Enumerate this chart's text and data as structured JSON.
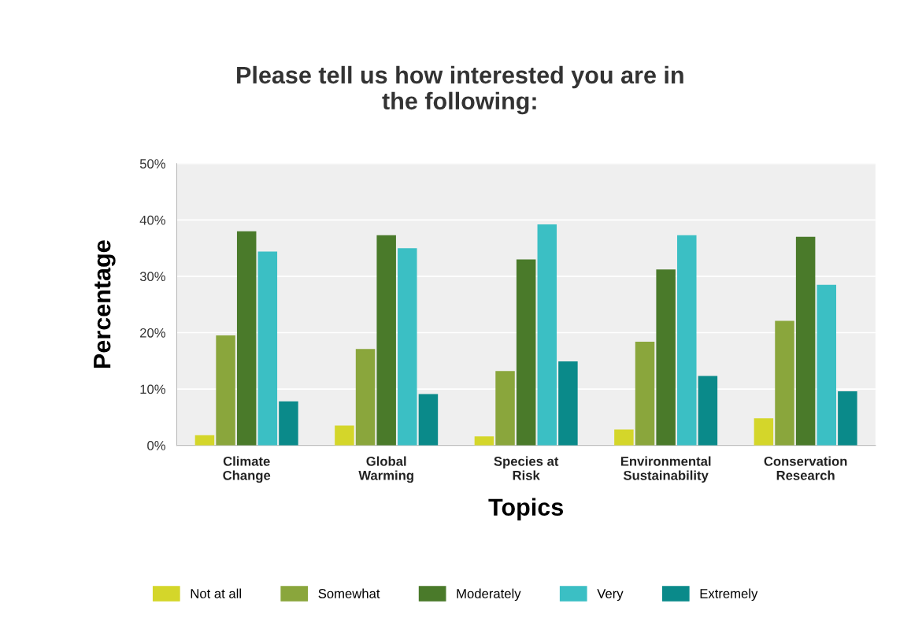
{
  "chart_data": {
    "type": "bar",
    "title": "Please tell us how interested you are in\nthe following:",
    "xlabel": "Topics",
    "ylabel": "Percentage",
    "categories": [
      "Climate\nChange",
      "Global\nWarming",
      "Species at\nRisk",
      "Environmental\nSustainability",
      "Conservation\nResearch"
    ],
    "series": [
      {
        "name": "Not at all",
        "color": "#d4d62a",
        "values": [
          1.8,
          3.5,
          1.6,
          2.8,
          4.8
        ]
      },
      {
        "name": "Somewhat",
        "color": "#8aa63c",
        "values": [
          19.5,
          17.1,
          13.2,
          18.4,
          22.1
        ]
      },
      {
        "name": "Moderately",
        "color": "#4a7a2a",
        "values": [
          38,
          37.3,
          33,
          31.2,
          37
        ]
      },
      {
        "name": "Very",
        "color": "#3bbfc4",
        "values": [
          34.4,
          35,
          39.2,
          37.3,
          28.5
        ]
      },
      {
        "name": "Extremely",
        "color": "#0a8a8a",
        "values": [
          7.8,
          9.1,
          14.9,
          12.3,
          9.6
        ]
      }
    ],
    "ylim": [
      0,
      50
    ],
    "yticks": [
      {
        "value": 0,
        "label": "0%"
      },
      {
        "value": 10,
        "label": "10%"
      },
      {
        "value": 20,
        "label": "20%"
      },
      {
        "value": 30,
        "label": "30%"
      },
      {
        "value": 40,
        "label": "40%"
      },
      {
        "value": 50,
        "label": "50%"
      }
    ],
    "grid": "y",
    "legend": "bottom"
  }
}
